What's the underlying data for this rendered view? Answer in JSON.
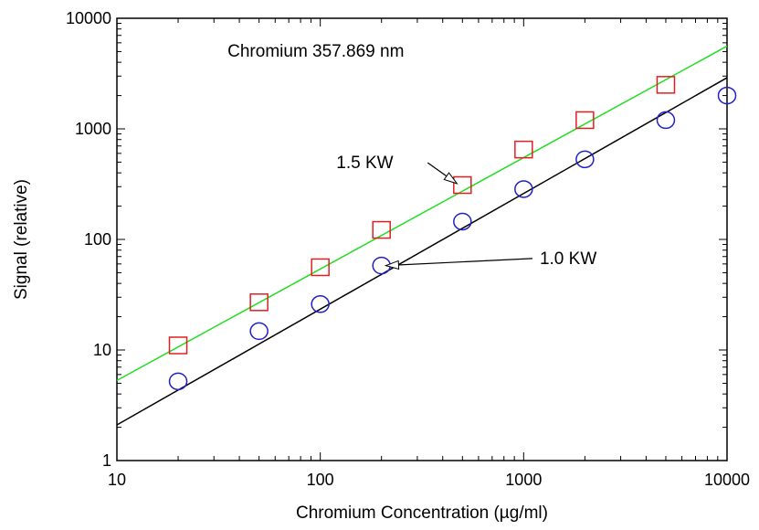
{
  "chart_data": {
    "type": "scatter",
    "title": "",
    "xlabel": "Chromium Concentration (µg/ml)",
    "ylabel": "Signal (relative)",
    "xscale": "log",
    "yscale": "log",
    "xlim": [
      10,
      10000
    ],
    "ylim": [
      1,
      10000
    ],
    "xticks": [
      10,
      100,
      1000,
      10000
    ],
    "xtick_labels": [
      "10",
      "100",
      "1000",
      "10000"
    ],
    "yticks": [
      1,
      10,
      100,
      1000,
      10000
    ],
    "ytick_labels": [
      "1",
      "10",
      "100",
      "1000",
      "10000"
    ],
    "grid": false,
    "legend": "none",
    "annotations": [
      {
        "text": "Chromium 357.869 nm",
        "x": 35,
        "y": 4500
      },
      {
        "text": "1.5 KW",
        "x": 120,
        "y": 440,
        "arrow_to": [
          470,
          320
        ]
      },
      {
        "text": "1.0 KW",
        "x": 1200,
        "y": 60,
        "arrow_to": [
          210,
          58
        ]
      }
    ],
    "series": [
      {
        "name": "1.5 KW",
        "marker": "square",
        "color": "#e02020",
        "x": [
          20,
          50,
          100,
          200,
          500,
          1000,
          2000,
          5000
        ],
        "y": [
          11,
          27,
          56,
          122,
          310,
          650,
          1200,
          2500
        ],
        "fit": {
          "x": [
            10,
            10000
          ],
          "y": [
            5.3,
            5600
          ],
          "color": "#22dd22"
        }
      },
      {
        "name": "1.0 KW",
        "marker": "circle",
        "color": "#2020c8",
        "x": [
          20,
          50,
          100,
          200,
          500,
          1000,
          2000,
          5000,
          10000
        ],
        "y": [
          5.2,
          14.8,
          26,
          58,
          145,
          285,
          530,
          1200,
          2000
        ],
        "fit": {
          "x": [
            10,
            10000
          ],
          "y": [
            2.1,
            2900
          ],
          "color": "#000000"
        }
      }
    ]
  }
}
